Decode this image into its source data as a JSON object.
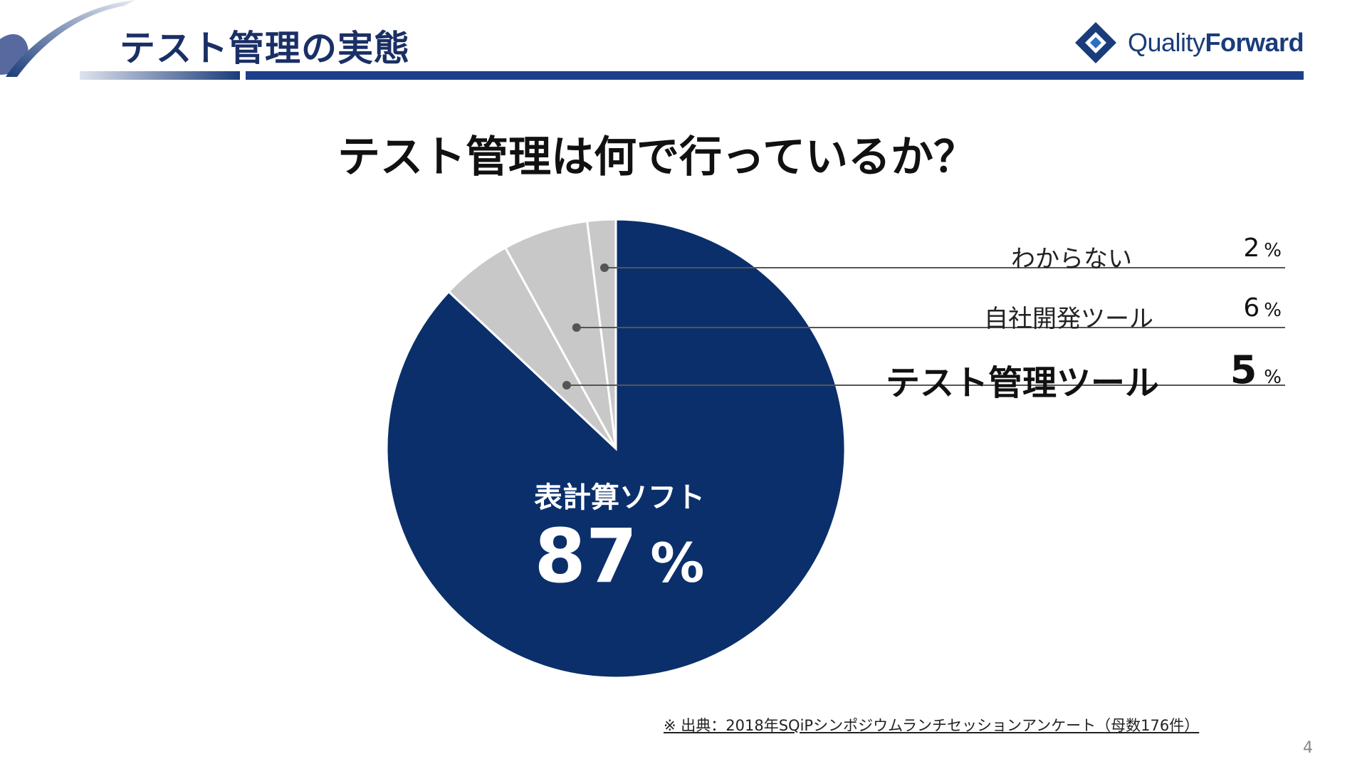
{
  "header": {
    "title": "テスト管理の実態",
    "logo": {
      "part1": "Quality",
      "part2": "Forward"
    }
  },
  "question": "テスト管理は何で行っているか？",
  "chart_data": {
    "type": "pie",
    "title": "テスト管理は何で行っているか？",
    "unit": "%",
    "slices": [
      {
        "label": "表計算ソフト",
        "value": 87,
        "color": "#0b2f6b",
        "emphasis": "main"
      },
      {
        "label": "テスト管理ツール",
        "value": 5,
        "color": "#c8c8c8",
        "emphasis": "highlight"
      },
      {
        "label": "自社開発ツール",
        "value": 6,
        "color": "#c8c8c8",
        "emphasis": "normal"
      },
      {
        "label": "わからない",
        "value": 2,
        "color": "#c8c8c8",
        "emphasis": "normal"
      }
    ]
  },
  "labels": {
    "main_name": "表計算ソフト",
    "main_value": "87",
    "percent": "%",
    "tool_name": "テスト管理ツール",
    "tool_value": "5",
    "inhouse_name": "自社開発ツール",
    "inhouse_value": "6",
    "unknown_name": "わからない",
    "unknown_value": "2"
  },
  "source": "※ 出典：2018年SQiPシンポジウムランチセッションアンケート（母数176件）",
  "page_number": "4"
}
